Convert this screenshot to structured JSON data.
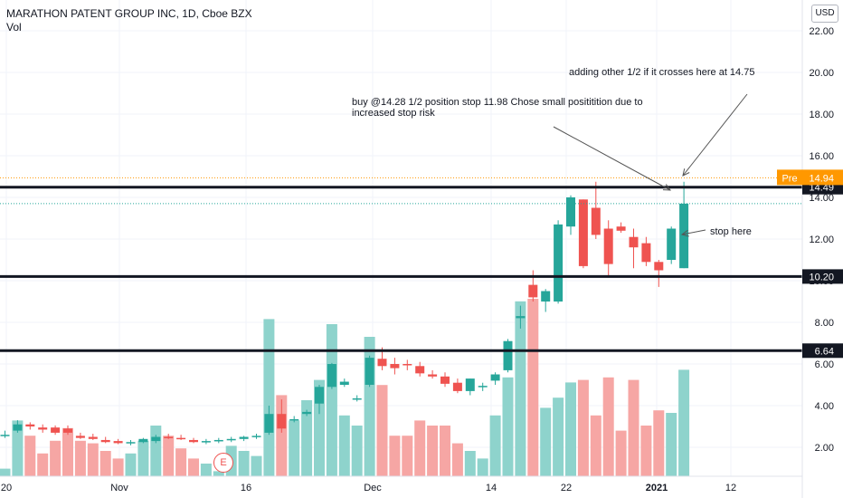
{
  "header": {
    "title": "MARATHON PATENT GROUP INC, 1D, Cboe BZX",
    "volume_label": "Vol",
    "currency_button": "USD"
  },
  "colors": {
    "up": "#26a69a",
    "down": "#ef5350",
    "up_volume": "#8ed3cc",
    "down_volume": "#f6a6a4",
    "premarket": "#ff9800",
    "grid": "#f0f3fa",
    "line": "#131722"
  },
  "annotations": {
    "note_add": "adding other 1/2 if it crosses here at 14.75",
    "note_buy_line1": "buy @14.28 1/2 position  stop 11.98  Chose small posititition due to",
    "note_buy_line2": "increased stop risk",
    "note_stop": "stop here",
    "earnings_marker": "E"
  },
  "price_labels": {
    "pre_tag": "Pre",
    "pre_value": "14.94",
    "line1": "14.49",
    "line2": "10.20",
    "line3": "6.64"
  },
  "chart_data": {
    "type": "candlestick",
    "title": "MARATHON PATENT GROUP INC, 1D, Cboe BZX",
    "y_axis_ticks": [
      "22.00",
      "20.00",
      "18.00",
      "16.00",
      "14.00",
      "12.00",
      "10.00",
      "8.00",
      "6.00",
      "4.00",
      "2.00"
    ],
    "y_axis_values": [
      22,
      20,
      18,
      16,
      14,
      12,
      10,
      8,
      6,
      4,
      2
    ],
    "x_axis_ticks": [
      "20",
      "Nov",
      "16",
      "Dec",
      "14",
      "22",
      "2021",
      "12"
    ],
    "ylim": [
      0.6,
      22.6
    ],
    "horizontal_lines": [
      14.49,
      10.2,
      6.64
    ],
    "premarket_line": 14.94,
    "candles": [
      {
        "o": 2.55,
        "h": 2.8,
        "l": 2.45,
        "c": 2.6
      },
      {
        "o": 2.8,
        "h": 3.3,
        "l": 2.7,
        "c": 3.1
      },
      {
        "o": 3.1,
        "h": 3.2,
        "l": 2.85,
        "c": 3.0
      },
      {
        "o": 2.95,
        "h": 3.1,
        "l": 2.7,
        "c": 2.85
      },
      {
        "o": 2.95,
        "h": 3.05,
        "l": 2.6,
        "c": 2.7
      },
      {
        "o": 2.9,
        "h": 3.05,
        "l": 2.6,
        "c": 2.7
      },
      {
        "o": 2.55,
        "h": 2.7,
        "l": 2.4,
        "c": 2.45
      },
      {
        "o": 2.5,
        "h": 2.65,
        "l": 2.35,
        "c": 2.4
      },
      {
        "o": 2.35,
        "h": 2.5,
        "l": 2.2,
        "c": 2.25
      },
      {
        "o": 2.3,
        "h": 2.4,
        "l": 2.15,
        "c": 2.2
      },
      {
        "o": 2.2,
        "h": 2.35,
        "l": 2.1,
        "c": 2.25
      },
      {
        "o": 2.25,
        "h": 2.45,
        "l": 2.2,
        "c": 2.4
      },
      {
        "o": 2.3,
        "h": 2.6,
        "l": 2.2,
        "c": 2.5
      },
      {
        "o": 2.5,
        "h": 2.65,
        "l": 2.4,
        "c": 2.45
      },
      {
        "o": 2.45,
        "h": 2.6,
        "l": 2.35,
        "c": 2.4
      },
      {
        "o": 2.35,
        "h": 2.45,
        "l": 2.2,
        "c": 2.25
      },
      {
        "o": 2.25,
        "h": 2.4,
        "l": 2.15,
        "c": 2.3
      },
      {
        "o": 2.3,
        "h": 2.45,
        "l": 2.2,
        "c": 2.35
      },
      {
        "o": 2.35,
        "h": 2.5,
        "l": 2.25,
        "c": 2.4
      },
      {
        "o": 2.4,
        "h": 2.55,
        "l": 2.3,
        "c": 2.5
      },
      {
        "o": 2.5,
        "h": 2.65,
        "l": 2.4,
        "c": 2.55
      },
      {
        "o": 2.7,
        "h": 4.0,
        "l": 2.6,
        "c": 3.6
      },
      {
        "o": 3.6,
        "h": 4.3,
        "l": 2.7,
        "c": 2.9
      },
      {
        "o": 3.3,
        "h": 3.5,
        "l": 3.2,
        "c": 3.35
      },
      {
        "o": 3.6,
        "h": 3.8,
        "l": 3.5,
        "c": 3.7
      },
      {
        "o": 4.1,
        "h": 5.0,
        "l": 3.6,
        "c": 4.9
      },
      {
        "o": 4.9,
        "h": 6.05,
        "l": 4.8,
        "c": 6.0
      },
      {
        "o": 5.0,
        "h": 5.3,
        "l": 4.9,
        "c": 5.15
      },
      {
        "o": 4.3,
        "h": 4.5,
        "l": 4.2,
        "c": 4.35
      },
      {
        "o": 5.0,
        "h": 6.4,
        "l": 4.9,
        "c": 6.3
      },
      {
        "o": 6.25,
        "h": 6.8,
        "l": 5.7,
        "c": 5.9
      },
      {
        "o": 6.0,
        "h": 6.3,
        "l": 5.5,
        "c": 5.8
      },
      {
        "o": 6.0,
        "h": 6.2,
        "l": 5.7,
        "c": 5.95
      },
      {
        "o": 5.9,
        "h": 6.1,
        "l": 5.4,
        "c": 5.55
      },
      {
        "o": 5.5,
        "h": 5.7,
        "l": 5.3,
        "c": 5.4
      },
      {
        "o": 5.4,
        "h": 5.6,
        "l": 4.9,
        "c": 5.05
      },
      {
        "o": 5.1,
        "h": 5.3,
        "l": 4.6,
        "c": 4.7
      },
      {
        "o": 4.7,
        "h": 5.3,
        "l": 4.5,
        "c": 5.3
      },
      {
        "o": 4.9,
        "h": 5.1,
        "l": 4.7,
        "c": 4.95
      },
      {
        "o": 5.2,
        "h": 5.6,
        "l": 5.0,
        "c": 5.5
      },
      {
        "o": 5.7,
        "h": 7.2,
        "l": 5.6,
        "c": 7.1
      },
      {
        "o": 8.2,
        "h": 8.8,
        "l": 7.7,
        "c": 8.3
      },
      {
        "o": 9.8,
        "h": 10.5,
        "l": 9.0,
        "c": 9.2
      },
      {
        "o": 9.0,
        "h": 9.6,
        "l": 8.5,
        "c": 9.5
      },
      {
        "o": 9.0,
        "h": 12.9,
        "l": 8.9,
        "c": 12.7
      },
      {
        "o": 12.6,
        "h": 14.1,
        "l": 12.2,
        "c": 14.0
      },
      {
        "o": 13.9,
        "h": 13.9,
        "l": 10.6,
        "c": 10.7
      },
      {
        "o": 13.5,
        "h": 14.75,
        "l": 12.0,
        "c": 12.2
      },
      {
        "o": 12.5,
        "h": 12.9,
        "l": 10.2,
        "c": 10.8
      },
      {
        "o": 12.6,
        "h": 12.8,
        "l": 12.3,
        "c": 12.4
      },
      {
        "o": 12.1,
        "h": 12.5,
        "l": 10.6,
        "c": 11.6
      },
      {
        "o": 11.8,
        "h": 12.1,
        "l": 10.7,
        "c": 10.9
      },
      {
        "o": 10.9,
        "h": 11.0,
        "l": 9.7,
        "c": 10.5
      },
      {
        "o": 11.0,
        "h": 12.6,
        "l": 10.8,
        "c": 12.5
      },
      {
        "o": 10.6,
        "h": 14.75,
        "l": 10.6,
        "c": 13.7
      }
    ],
    "volume_heights": [
      0.03,
      0.22,
      0.16,
      0.09,
      0.14,
      0.19,
      0.14,
      0.13,
      0.1,
      0.07,
      0.09,
      0.14,
      0.2,
      0.16,
      0.11,
      0.07,
      0.05,
      0.02,
      0.12,
      0.1,
      0.08,
      0.62,
      0.32,
      0.22,
      0.3,
      0.38,
      0.6,
      0.24,
      0.2,
      0.55,
      0.36,
      0.16,
      0.16,
      0.22,
      0.2,
      0.2,
      0.13,
      0.1,
      0.07,
      0.24,
      0.39,
      0.69,
      0.7,
      0.27,
      0.31,
      0.37,
      0.38,
      0.24,
      0.39,
      0.18,
      0.38,
      0.2,
      0.26,
      0.25,
      0.42
    ]
  }
}
